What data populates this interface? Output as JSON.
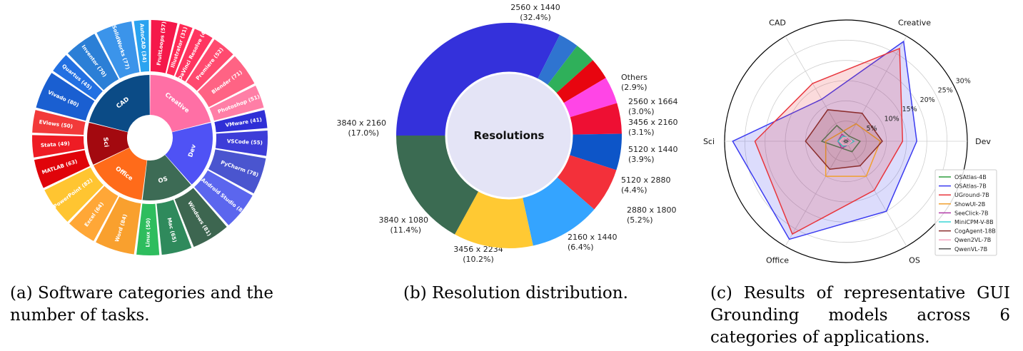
{
  "chart_data": [
    {
      "id": "a",
      "type": "pie",
      "caption": "(a) Software categories and the number of tasks.",
      "categories": [
        {
          "name": "Creative",
          "color": "#ff6fa5",
          "apps": [
            {
              "label": "FruitLoops (57)",
              "value": 57,
              "color": "#f5184a"
            },
            {
              "label": "Illustrator (31)",
              "value": 31,
              "color": "#ff2a55"
            },
            {
              "label": "DaVinci Resolve (44)",
              "value": 44,
              "color": "#ff3560"
            },
            {
              "label": "Premiere (52)",
              "value": 52,
              "color": "#ff4a6f"
            },
            {
              "label": "Blender (71)",
              "value": 71,
              "color": "#ff6384"
            },
            {
              "label": "Photoshop (51)",
              "value": 51,
              "color": "#ff7ea6"
            }
          ]
        },
        {
          "name": "Dev",
          "color": "#4f52f5",
          "apps": [
            {
              "label": "VMware (41)",
              "value": 41,
              "color": "#2f2fd6"
            },
            {
              "label": "VSCode (55)",
              "value": 55,
              "color": "#3d3dd8"
            },
            {
              "label": "PyCharm (78)",
              "value": 78,
              "color": "#4a55cf"
            },
            {
              "label": "Android Studio (80)",
              "value": 80,
              "color": "#5b66ee"
            }
          ]
        },
        {
          "name": "OS",
          "color": "#3d6b55",
          "apps": [
            {
              "label": "Windows (81)",
              "value": 81,
              "color": "#3d6650"
            },
            {
              "label": "Mac (65)",
              "value": 65,
              "color": "#2f8a5c"
            },
            {
              "label": "Linux (50)",
              "value": 50,
              "color": "#2ebd5e"
            }
          ]
        },
        {
          "name": "Office",
          "color": "#ff6b1a",
          "apps": [
            {
              "label": "Word (84)",
              "value": 84,
              "color": "#f9a02e"
            },
            {
              "label": "Excel (64)",
              "value": 64,
              "color": "#ffa737"
            },
            {
              "label": "PowerPoint (82)",
              "value": 82,
              "color": "#ffc531"
            }
          ]
        },
        {
          "name": "Sci",
          "color": "#a3090f",
          "apps": [
            {
              "label": "MATLAB (63)",
              "value": 63,
              "color": "#e0040a"
            },
            {
              "label": "Stata (49)",
              "value": 49,
              "color": "#ee1c24"
            },
            {
              "label": "EViews (50)",
              "value": 50,
              "color": "#f23a3a"
            }
          ]
        },
        {
          "name": "CAD",
          "color": "#0b4b86",
          "apps": [
            {
              "label": "Vivado (80)",
              "value": 80,
              "color": "#1a5fd1"
            },
            {
              "label": "Quartus (45)",
              "value": 45,
              "color": "#2270e2"
            },
            {
              "label": "Inventor (70)",
              "value": 70,
              "color": "#2b7fd6"
            },
            {
              "label": "SolidWorks (77)",
              "value": 77,
              "color": "#3b94ea"
            },
            {
              "label": "AutoCAD (34)",
              "value": 34,
              "color": "#2aa3f0"
            }
          ]
        }
      ]
    },
    {
      "id": "b",
      "type": "pie",
      "caption": "(b) Resolution distribution.",
      "center_label": "Resolutions",
      "slices": [
        {
          "label": "2560 x 1440",
          "pct": "(32.4%)",
          "value": 32.4,
          "color": "#3431db"
        },
        {
          "label": "Others",
          "pct": "(2.9%)",
          "value": 2.9,
          "color": "#2f74d0"
        },
        {
          "label": "2560 x 1664",
          "pct": "(3.0%)",
          "value": 3.0,
          "color": "#2fb05a"
        },
        {
          "label": "3456 x 2160",
          "pct": "(3.1%)",
          "value": 3.1,
          "color": "#e8050f"
        },
        {
          "label": "5120 x 1440",
          "pct": "(3.9%)",
          "value": 3.9,
          "color": "#ff45e6"
        },
        {
          "label": "5120 x 2880",
          "pct": "(4.4%)",
          "value": 4.4,
          "color": "#ee0f33"
        },
        {
          "label": "2880 x 1800",
          "pct": "(5.2%)",
          "value": 5.2,
          "color": "#0d55c8"
        },
        {
          "label": "2160 x 1440",
          "pct": "(6.4%)",
          "value": 6.4,
          "color": "#f3303a"
        },
        {
          "label": "3456 x 2234",
          "pct": "(10.2%)",
          "value": 10.2,
          "color": "#34a4ff"
        },
        {
          "label": "3840 x 1080",
          "pct": "(11.4%)",
          "value": 11.4,
          "color": "#ffc933"
        },
        {
          "label": "3840 x 2160",
          "pct": "(17.0%)",
          "value": 17.0,
          "color": "#3b6b52"
        }
      ]
    },
    {
      "id": "c",
      "type": "radar",
      "caption": "(c) Results of representative GUI Grounding models across 6 categories of applications.",
      "axes": [
        "Dev",
        "Creative",
        "CAD",
        "Sci",
        "Office",
        "OS"
      ],
      "rmax": 30,
      "ticks": [
        5,
        10,
        15,
        20,
        25,
        30
      ],
      "tick_labels": [
        "5%",
        "10%",
        "15%",
        "20%",
        "25%",
        "30%"
      ],
      "series": [
        {
          "name": "OSAtlas-4B",
          "color": "#2e9e3e",
          "fill": false,
          "values": [
            3.5,
            1.5,
            4.5,
            6.0,
            2.0,
            3.0
          ]
        },
        {
          "name": "OSAtlas-7B",
          "color": "#3b3bf0",
          "fill": true,
          "values": [
            17.5,
            28.5,
            12.0,
            28.0,
            28.0,
            20.0
          ]
        },
        {
          "name": "UGround-7B",
          "color": "#e8363d",
          "fill": true,
          "values": [
            14.0,
            26.5,
            16.5,
            22.5,
            26.5,
            14.0
          ]
        },
        {
          "name": "ShowUI-2B",
          "color": "#f0a030",
          "fill": false,
          "values": [
            8.5,
            5.0,
            2.5,
            5.0,
            10.0,
            10.0
          ]
        },
        {
          "name": "SeeClick-7B",
          "color": "#b23aa8",
          "fill": false,
          "values": [
            1.5,
            0.8,
            2.0,
            2.0,
            2.0,
            1.0
          ]
        },
        {
          "name": "MiniCPM-V-8B",
          "color": "#38d6d6",
          "fill": false,
          "values": [
            2.0,
            1.0,
            1.5,
            2.0,
            1.5,
            1.0
          ]
        },
        {
          "name": "CogAgent-18B",
          "color": "#8b2d2d",
          "fill": true,
          "values": [
            9.0,
            8.0,
            9.0,
            10.0,
            8.0,
            7.0
          ]
        },
        {
          "name": "Qwen2VL-7B",
          "color": "#f4a6c2",
          "fill": false,
          "values": [
            1.5,
            1.0,
            1.0,
            1.5,
            1.0,
            1.0
          ]
        },
        {
          "name": "QwenVL-7B",
          "color": "#555555",
          "fill": false,
          "values": [
            0.5,
            0.3,
            0.3,
            0.5,
            0.3,
            0.3
          ]
        }
      ]
    }
  ]
}
